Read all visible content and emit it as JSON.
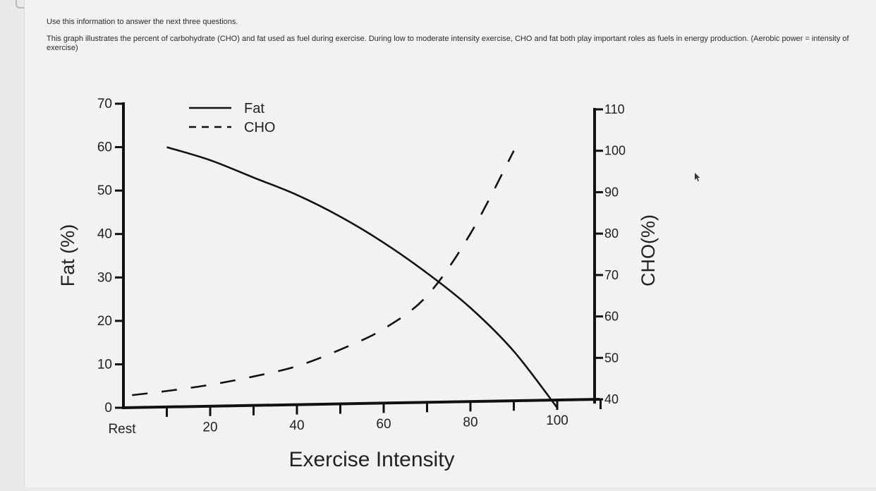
{
  "intro": {
    "lead": "Use this information to answer the next three questions.",
    "description": "This graph illustrates the percent of carbohydrate (CHO) and fat used as fuel during exercise. During low to moderate intensity exercise, CHO and fat both play important roles as fuels in energy production. (Aerobic power = intensity of exercise)"
  },
  "chart_data": {
    "type": "line",
    "title": "",
    "xlabel": "Exercise Intensity",
    "ylabel": "Fat (%)",
    "y2label": "CHO(%)",
    "x_ticks": [
      {
        "value": 0,
        "label": "Rest"
      },
      {
        "value": 20,
        "label": "20"
      },
      {
        "value": 40,
        "label": "40"
      },
      {
        "value": 60,
        "label": "60"
      },
      {
        "value": 80,
        "label": "80"
      },
      {
        "value": 100,
        "label": "100"
      }
    ],
    "xlim": [
      0,
      110
    ],
    "ylim": [
      0,
      70
    ],
    "y_ticks": [
      0,
      10,
      20,
      30,
      40,
      50,
      60,
      70
    ],
    "y2lim": [
      40,
      110
    ],
    "y2_ticks": [
      40,
      50,
      60,
      70,
      80,
      90,
      100,
      110
    ],
    "legend_position": "top-left",
    "grid": false,
    "series": [
      {
        "name": "Fat",
        "style": "solid",
        "axis": "left",
        "x": [
          10,
          20,
          30,
          40,
          50,
          60,
          70,
          80,
          90,
          100
        ],
        "y": [
          60,
          57,
          53,
          49,
          44,
          38,
          31,
          23,
          13,
          0
        ]
      },
      {
        "name": "CHO",
        "style": "dashed",
        "axis": "right",
        "x": [
          2,
          10,
          20,
          30,
          40,
          50,
          60,
          70,
          80,
          90
        ],
        "y": [
          41,
          42,
          43.5,
          45.5,
          48,
          52,
          57,
          65,
          80,
          100
        ]
      }
    ]
  }
}
